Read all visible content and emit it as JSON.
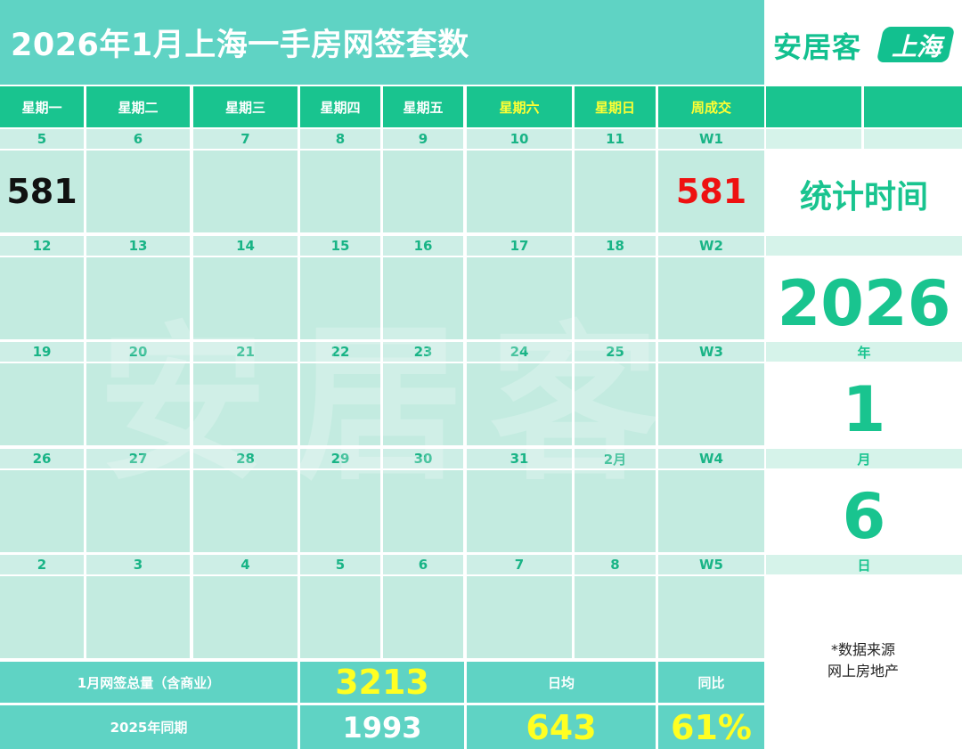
{
  "title": "2026年1月上海一手房网签套数",
  "logo": {
    "text": "安居客",
    "badge": "上海"
  },
  "weekdays": [
    "星期一",
    "星期二",
    "星期三",
    "星期四",
    "星期五",
    "星期六",
    "星期日",
    "周成交"
  ],
  "weeks": [
    {
      "dates": [
        "5",
        "6",
        "7",
        "8",
        "9",
        "10",
        "11",
        "W1"
      ],
      "values": [
        "581",
        "",
        "",
        "",
        "",
        "",
        "",
        "581"
      ]
    },
    {
      "dates": [
        "12",
        "13",
        "14",
        "15",
        "16",
        "17",
        "18",
        "W2"
      ],
      "values": [
        "",
        "",
        "",
        "",
        "",
        "",
        "",
        ""
      ]
    },
    {
      "dates": [
        "19",
        "20",
        "21",
        "22",
        "23",
        "24",
        "25",
        "W3"
      ],
      "values": [
        "",
        "",
        "",
        "",
        "",
        "",
        "",
        ""
      ]
    },
    {
      "dates": [
        "26",
        "27",
        "28",
        "29",
        "30",
        "31",
        "2月",
        "W4"
      ],
      "values": [
        "",
        "",
        "",
        "",
        "",
        "",
        "",
        ""
      ]
    },
    {
      "dates": [
        "2",
        "3",
        "4",
        "5",
        "6",
        "7",
        "8",
        "W5"
      ],
      "values": [
        "",
        "",
        "",
        "",
        "",
        "",
        "",
        ""
      ]
    }
  ],
  "stat": {
    "label": "统计时间",
    "year": "2026",
    "year_unit": "年",
    "month": "1",
    "month_unit": "月",
    "day": "6",
    "day_unit": "日"
  },
  "source": {
    "line1": "*数据来源",
    "line2": "网上房地产"
  },
  "watermark": "安居客",
  "summary": {
    "total_label": "1月网签总量（含商业）",
    "total_value": "3213",
    "avg_label": "日均",
    "yoy_label": "同比",
    "prev_label": "2025年同期",
    "prev_value": "1993",
    "avg_value": "643",
    "yoy_value": "61%"
  },
  "colors": {
    "accent": "#19c48f",
    "header_bg": "#5fd3c4",
    "cell_bg": "#c3ebe0",
    "highlight": "#ffff22",
    "red": "#ee1111"
  }
}
